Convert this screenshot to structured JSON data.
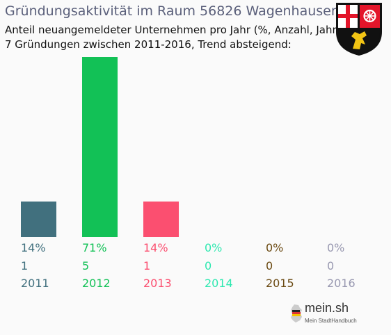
{
  "header": {
    "title": "Gründungsaktivität im Raum 56826 Wagenhausen",
    "subtitle_1": "Anteil neuangemeldeter Unternehmen pro Jahr (%, Anzahl, Jahr)",
    "subtitle_2": "7 Gründungen zwischen 2011-2016, Trend absteigend:"
  },
  "crest": {
    "icon": "rhineland-palatinate-coat-of-arms-icon"
  },
  "logo": {
    "icon": "germany-map-icon",
    "text": "mein.sh",
    "tagline": "Mein StadtHandbuch"
  },
  "chart_data": {
    "type": "bar",
    "categories": [
      "2011",
      "2012",
      "2013",
      "2014",
      "2015",
      "2016"
    ],
    "values": [
      14,
      71,
      14,
      0,
      0,
      0
    ],
    "percent_labels": [
      "14%",
      "71%",
      "14%",
      "0%",
      "0%",
      "0%"
    ],
    "counts": [
      "1",
      "5",
      "1",
      "0",
      "0",
      "0"
    ],
    "colors": [
      "#41707e",
      "#12c156",
      "#fb4f70",
      "#2ee8b0",
      "#6b4a12",
      "#9898b0"
    ],
    "ylim": [
      0,
      71
    ],
    "grid": false,
    "legend": "none"
  }
}
